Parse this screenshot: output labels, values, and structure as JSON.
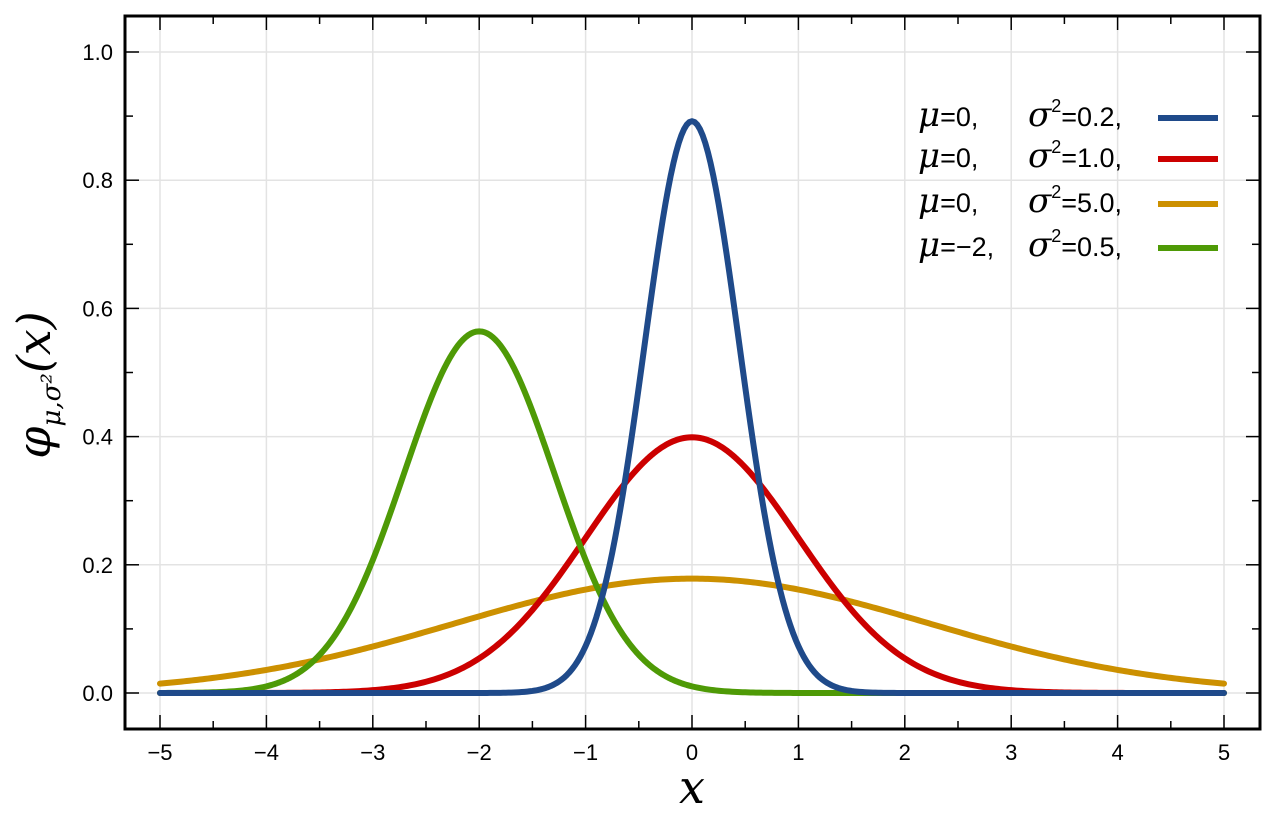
{
  "chart_data": {
    "type": "line",
    "xlabel": "x",
    "ylabel": {
      "base": "φ",
      "sub": "μ,σ²",
      "arg": "(x)"
    },
    "xlim": [
      -5,
      5
    ],
    "ylim": [
      0,
      1.0
    ],
    "x_ticks": [
      -5,
      -4,
      -3,
      -2,
      -1,
      0,
      1,
      2,
      3,
      4,
      5
    ],
    "x_tick_labels": [
      "−5",
      "−4",
      "−3",
      "−2",
      "−1",
      "0",
      "1",
      "2",
      "3",
      "4",
      "5"
    ],
    "y_ticks": [
      0,
      0.2,
      0.4,
      0.6,
      0.8,
      1.0
    ],
    "y_tick_labels": [
      "0.0",
      "0.2",
      "0.4",
      "0.6",
      "0.8",
      "1.0"
    ],
    "grid": true,
    "legend_position": "top-right",
    "series": [
      {
        "mu": 0,
        "sigma2": 0.2,
        "color": "#1f4a8a",
        "legend": {
          "mu": "0,",
          "sigma2": "0.2,"
        }
      },
      {
        "mu": 0,
        "sigma2": 1.0,
        "color": "#cc0000",
        "legend": {
          "mu": "0,",
          "sigma2": "1.0,"
        }
      },
      {
        "mu": 0,
        "sigma2": 5.0,
        "color": "#cc9000",
        "legend": {
          "mu": "0,",
          "sigma2": "5.0,"
        }
      },
      {
        "mu": -2,
        "sigma2": 0.5,
        "color": "#4e9a06",
        "legend": {
          "mu": "−2,",
          "sigma2": "0.5,"
        }
      }
    ]
  }
}
